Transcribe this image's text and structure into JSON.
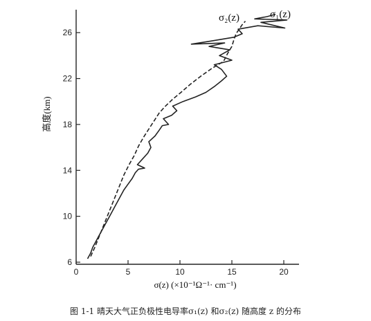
{
  "figure": {
    "caption": "图 1-1  晴天大气正负极性电导率σ₁(z) 和σ₂(z) 随高度 z 的分布"
  },
  "chart_data": {
    "type": "line",
    "xlabel": "σ(z) (×10⁻¹Ω⁻¹· cm⁻¹)",
    "ylabel": "高度(km)",
    "xlim": [
      0,
      22
    ],
    "ylim": [
      6,
      28
    ],
    "xticks": [
      0,
      5,
      10,
      15,
      20
    ],
    "yticks": [
      6,
      10,
      14,
      18,
      22,
      26
    ],
    "grid": false,
    "series": [
      {
        "name": "σ₁(z)",
        "style": "solid",
        "color": "#222222",
        "x": [
          1.1,
          1.4,
          1.6,
          1.9,
          2.2,
          2.5,
          2.8,
          3.1,
          3.4,
          3.7,
          4.0,
          4.3,
          4.6,
          5.0,
          5.4,
          5.7,
          6.0,
          6.6,
          5.9,
          6.4,
          6.9,
          7.2,
          7.0,
          7.6,
          8.0,
          8.3,
          8.9,
          8.4,
          9.2,
          9.7,
          9.3,
          10.3,
          11.5,
          12.5,
          13.3,
          14.0,
          14.5,
          14.0,
          13.3,
          15.0,
          13.8,
          14.8,
          12.8,
          14.3,
          11.1,
          13.2,
          15.2,
          16.0,
          15.6,
          17.5,
          20.1,
          17.8,
          20.3,
          17.2,
          18.4,
          19.2
        ],
        "y": [
          6.3,
          6.8,
          7.3,
          7.8,
          8.3,
          8.8,
          9.3,
          9.8,
          10.3,
          10.8,
          11.3,
          11.8,
          12.3,
          12.8,
          13.3,
          13.8,
          14.1,
          14.2,
          14.5,
          15.0,
          15.5,
          16.0,
          16.5,
          17.0,
          17.5,
          17.9,
          18.0,
          18.5,
          18.8,
          19.2,
          19.6,
          20.0,
          20.4,
          20.8,
          21.3,
          21.8,
          22.2,
          22.8,
          23.2,
          23.6,
          24.0,
          24.5,
          24.8,
          25.1,
          25.0,
          25.3,
          25.6,
          25.9,
          26.3,
          26.6,
          26.4,
          26.9,
          27.1,
          27.2,
          27.4,
          27.6
        ]
      },
      {
        "name": "σ₂(z)",
        "style": "dashed",
        "color": "#222222",
        "x": [
          1.4,
          1.8,
          2.2,
          2.6,
          3.0,
          3.4,
          3.8,
          4.2,
          4.6,
          5.1,
          5.6,
          6.0,
          6.5,
          7.0,
          7.5,
          8.0,
          8.6,
          9.3,
          10.1,
          11.0,
          12.0,
          13.1,
          14.2,
          14.6,
          15.0,
          15.2,
          15.4,
          15.7,
          16.0,
          16.3
        ],
        "y": [
          6.5,
          7.3,
          8.2,
          9.1,
          10.0,
          10.9,
          11.8,
          12.7,
          13.6,
          14.5,
          15.3,
          16.1,
          16.9,
          17.6,
          18.3,
          19.0,
          19.6,
          20.2,
          20.8,
          21.5,
          22.2,
          22.9,
          23.5,
          24.2,
          24.8,
          25.4,
          25.9,
          26.3,
          26.7,
          27.0
        ]
      }
    ]
  }
}
